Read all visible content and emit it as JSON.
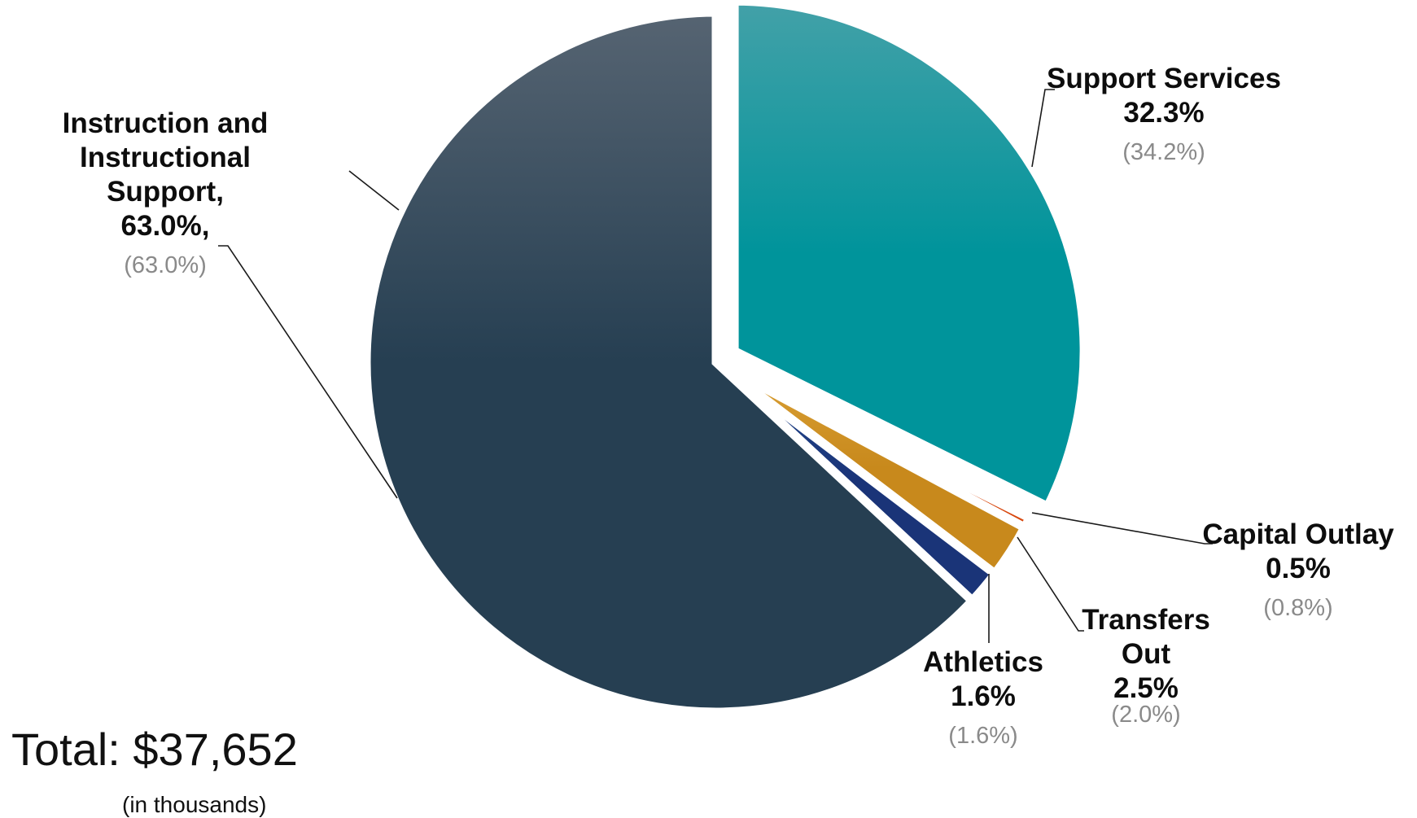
{
  "chart_data": {
    "type": "pie",
    "title": "",
    "total_label": "Total:  $37,652",
    "unit_label": "(in thousands)",
    "slices": [
      {
        "name": "Support Services",
        "name_lines": [
          "Support Services"
        ],
        "value": 32.3,
        "label": "32.3%",
        "prior": "(34.2%)",
        "color_top": "#43a1a8",
        "color": "#00949b",
        "exploded": true
      },
      {
        "name": "Capital Outlay",
        "name_lines": [
          "Capital Outlay"
        ],
        "value": 0.5,
        "label": "0.5%",
        "prior": "(0.8%)",
        "color_top": "#e4581a",
        "color": "#d8480f",
        "exploded": false
      },
      {
        "name": "Transfers Out",
        "name_lines": [
          "Transfers",
          "Out"
        ],
        "value": 2.5,
        "label": "2.5%",
        "prior": "(2.0%)",
        "color_top": "#dba238",
        "color": "#c8891c",
        "exploded": false
      },
      {
        "name": "Athletics",
        "name_lines": [
          "Athletics"
        ],
        "value": 1.6,
        "label": "1.6%",
        "prior": "(1.6%)",
        "color_top": "#244a90",
        "color": "#1a3478",
        "exploded": false
      },
      {
        "name": "Instruction and Instructional Support",
        "name_lines": [
          "Instruction and",
          "Instructional",
          "Support,"
        ],
        "value": 63.0,
        "label": "63.0%,",
        "prior": "(63.0%)",
        "color_top": "#566472",
        "color": "#263f52",
        "exploded": false
      }
    ]
  }
}
